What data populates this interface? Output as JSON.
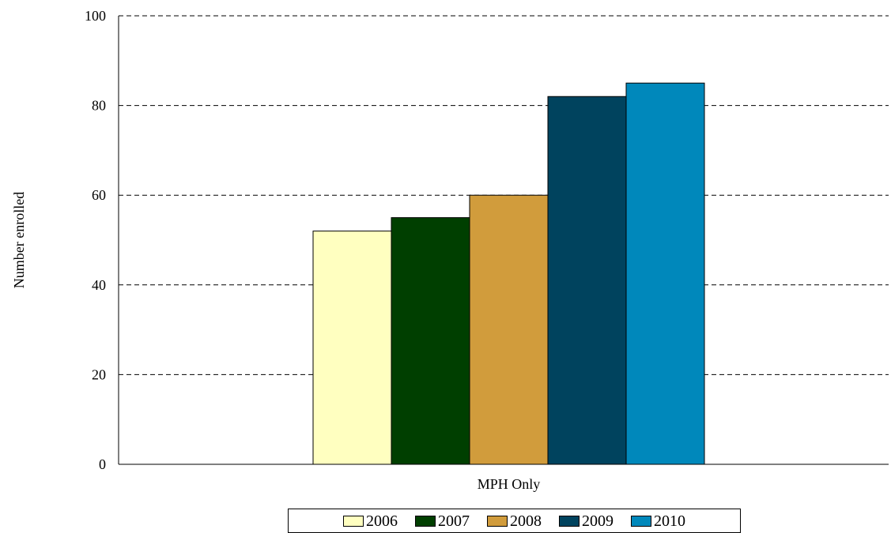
{
  "chart_data": {
    "type": "bar",
    "categories": [
      "MPH Only"
    ],
    "series": [
      {
        "name": "2006",
        "values": [
          52
        ],
        "color": "#FFFFC0"
      },
      {
        "name": "2007",
        "values": [
          55
        ],
        "color": "#003F00"
      },
      {
        "name": "2008",
        "values": [
          60
        ],
        "color": "#D19C3C"
      },
      {
        "name": "2009",
        "values": [
          82
        ],
        "color": "#00435E"
      },
      {
        "name": "2010",
        "values": [
          85
        ],
        "color": "#0088BB"
      }
    ],
    "title": "",
    "xlabel": "",
    "ylabel": "Number enrolled",
    "ylim": [
      0,
      100
    ],
    "yticks": [
      0,
      20,
      40,
      60,
      80,
      100
    ],
    "grid": "horizontal dashed",
    "legend": "bottom"
  }
}
